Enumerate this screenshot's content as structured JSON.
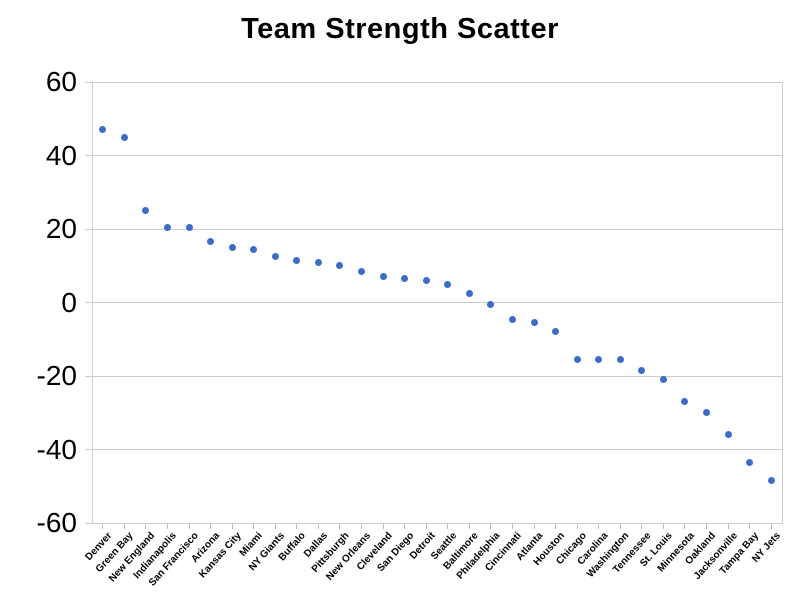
{
  "chart_data": {
    "type": "scatter",
    "title": "Team Strength Scatter",
    "categories": [
      "Denver",
      "Green Bay",
      "New England",
      "Indianapolis",
      "San Francisco",
      "Arizona",
      "Kansas City",
      "Miami",
      "NY Giants",
      "Buffalo",
      "Dallas",
      "Pittsburgh",
      "New Orleans",
      "Cleveland",
      "San Diego",
      "Detroit",
      "Seattle",
      "Baltimore",
      "Philadelphia",
      "Cincinnati",
      "Atlanta",
      "Houston",
      "Chicago",
      "Carolina",
      "Washington",
      "Tennessee",
      "St. Louis",
      "Minnesota",
      "Oakland",
      "Jacksonville",
      "Tampa Bay",
      "NY Jets"
    ],
    "values": [
      47,
      45,
      25,
      20.5,
      20.5,
      16.5,
      15,
      14.5,
      12.5,
      11.5,
      11,
      10,
      8.5,
      7,
      6.5,
      6,
      5,
      2.5,
      -0.5,
      -4.5,
      -5.5,
      -8,
      -15.5,
      -15.5,
      -15.5,
      -18.5,
      -21,
      -27,
      -30,
      -36,
      -43.5,
      -48.5
    ],
    "xlabel": "",
    "ylabel": "",
    "ylim": [
      -60,
      60
    ],
    "yticks": [
      60,
      40,
      20,
      0,
      -20,
      -40,
      -60
    ],
    "ytick_labels": [
      "60",
      "40",
      "20",
      "0",
      "-20",
      "-40",
      "-60"
    ],
    "grid": true,
    "legend": "none",
    "point_color": "#3b6cc9",
    "grid_color": "#cccccc",
    "text_color": "#000000"
  }
}
